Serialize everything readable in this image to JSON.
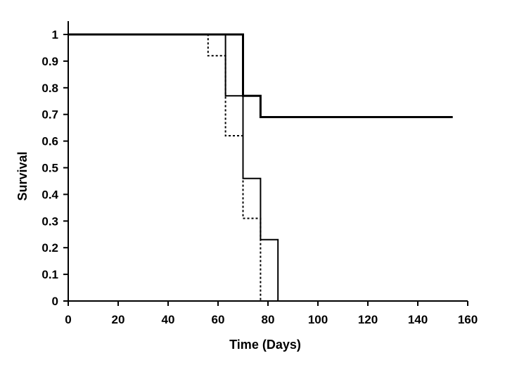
{
  "chart_data": {
    "type": "line",
    "line_shape": "step",
    "xlabel": "Time (Days)",
    "ylabel": "Survival",
    "xlim": [
      0,
      160
    ],
    "ylim": [
      0,
      1
    ],
    "x_ticks": [
      0,
      20,
      40,
      60,
      80,
      100,
      120,
      140,
      160
    ],
    "y_ticks": [
      0,
      0.1,
      0.2,
      0.3,
      0.4,
      0.5,
      0.6,
      0.7,
      0.8,
      0.9,
      1
    ],
    "y_tick_labels": [
      "0",
      "0.1",
      "0.2",
      "0.3",
      "0.4",
      "0.5",
      "0.6",
      "0.7",
      "0.8",
      "0.9",
      "1"
    ],
    "grid": false,
    "legend": "none",
    "series": [
      {
        "style": "solid-thick",
        "color": "#000000",
        "points": [
          [
            0,
            1
          ],
          [
            70,
            1
          ],
          [
            70,
            0.77
          ],
          [
            77,
            0.77
          ],
          [
            77,
            0.69
          ],
          [
            154,
            0.69
          ]
        ]
      },
      {
        "style": "solid-thin",
        "color": "#000000",
        "points": [
          [
            0,
            1
          ],
          [
            63,
            1
          ],
          [
            63,
            0.77
          ],
          [
            70,
            0.77
          ],
          [
            70,
            0.46
          ],
          [
            77,
            0.46
          ],
          [
            77,
            0.23
          ],
          [
            84,
            0.23
          ],
          [
            84,
            0
          ]
        ]
      },
      {
        "style": "dotted",
        "color": "#000000",
        "points": [
          [
            0,
            1
          ],
          [
            56,
            1
          ],
          [
            56,
            0.92
          ],
          [
            63,
            0.92
          ],
          [
            63,
            0.62
          ],
          [
            70,
            0.62
          ],
          [
            70,
            0.31
          ],
          [
            77,
            0.31
          ],
          [
            77,
            0
          ]
        ]
      }
    ]
  }
}
